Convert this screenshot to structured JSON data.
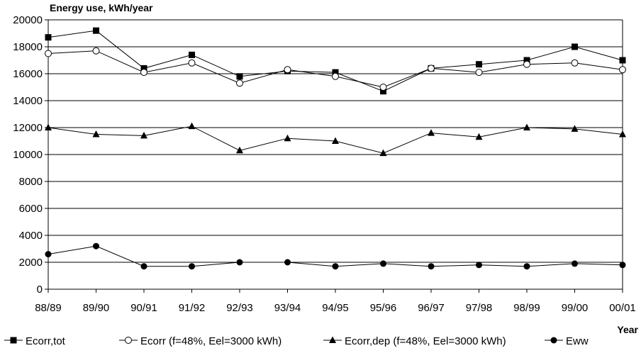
{
  "chart_data": {
    "type": "line",
    "ylabel": "Energy use, kWh/year",
    "xlabel": "Year",
    "categories": [
      "88/89",
      "89/90",
      "90/91",
      "91/92",
      "92/93",
      "93/94",
      "94/95",
      "95/96",
      "96/97",
      "97/98",
      "98/99",
      "99/00",
      "00/01"
    ],
    "ylim": [
      0,
      20000
    ],
    "yticks": [
      0,
      2000,
      4000,
      6000,
      8000,
      10000,
      12000,
      14000,
      16000,
      18000,
      20000
    ],
    "grid": "horizontal",
    "legend_position": "bottom",
    "series": [
      {
        "name": "Ecorr,tot",
        "marker": "filled-square",
        "values": [
          18700,
          19200,
          16400,
          17400,
          15800,
          16200,
          16100,
          14700,
          16400,
          16700,
          17000,
          18000,
          17000
        ]
      },
      {
        "name": "Ecorr (f=48%, Eel=3000 kWh)",
        "marker": "open-circle",
        "values": [
          17500,
          17700,
          16100,
          16800,
          15300,
          16300,
          15800,
          15000,
          16400,
          16100,
          16700,
          16800,
          16300
        ]
      },
      {
        "name": "Ecorr,dep (f=48%, Eel=3000 kWh)",
        "marker": "filled-triangle",
        "values": [
          12000,
          11500,
          11400,
          12100,
          10300,
          11200,
          11000,
          10100,
          11600,
          11300,
          12000,
          11900,
          11500
        ]
      },
      {
        "name": "Eww",
        "marker": "filled-circle",
        "values": [
          2600,
          3200,
          1700,
          1700,
          2000,
          2000,
          1700,
          1900,
          1700,
          1800,
          1700,
          1900,
          1800
        ]
      }
    ]
  }
}
